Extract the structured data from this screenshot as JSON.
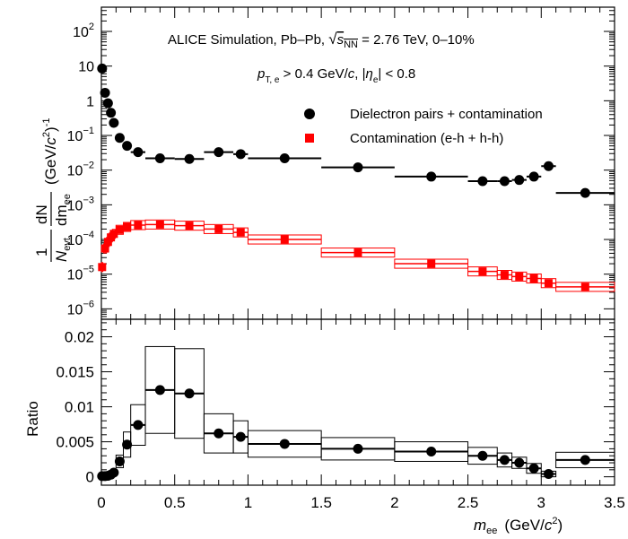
{
  "chart_data": [
    {
      "type": "scatter",
      "panel": "top",
      "annotation_line1": {
        "pre": "ALICE Simulation, Pb–Pb, ",
        "sqrt": "√",
        "s": "s",
        "nn": "NN",
        "post": " = 2.76 TeV, 0–10%"
      },
      "annotation_line2": {
        "p": "p",
        "p_sub": "T, e",
        "mid": " > 0.4 GeV/",
        "c": "c",
        "comma": ", |",
        "eta": "η",
        "eta_sub": "e",
        "end": "| < 0.8"
      },
      "ylabel": {
        "one": "1",
        "n": "N",
        "n_sub": "evt",
        "dN": "dN",
        "dm": "dm",
        "dm_sub": "ee",
        "unit_open": "(GeV/",
        "unit_c": "c",
        "unit_sq": "2",
        "unit_close": ")",
        "unit_exp": "-1"
      },
      "yscale": "log",
      "ylim": [
        5e-07,
        500
      ],
      "xlim": [
        0,
        3.5
      ],
      "y_ticks": [
        {
          "v": 1e-06,
          "base": "10",
          "exp": "−6"
        },
        {
          "v": 1e-05,
          "base": "10",
          "exp": "−5"
        },
        {
          "v": 0.0001,
          "base": "10",
          "exp": "−4"
        },
        {
          "v": 0.001,
          "base": "10",
          "exp": "−3"
        },
        {
          "v": 0.01,
          "base": "10",
          "exp": "−2"
        },
        {
          "v": 0.1,
          "base": "10",
          "exp": "−1"
        },
        {
          "v": 1,
          "base": "1",
          "exp": ""
        },
        {
          "v": 10,
          "base": "10",
          "exp": ""
        },
        {
          "v": 100,
          "base": "10",
          "exp": "2"
        }
      ],
      "legend_position": "right",
      "series": [
        {
          "name": "Dielectron pairs + contamination",
          "color": "#000000",
          "marker": "circle",
          "points": [
            {
              "x": 0.005,
              "y": 8.5,
              "xerr": 0.005
            },
            {
              "x": 0.025,
              "y": 1.7,
              "xerr": 0.01
            },
            {
              "x": 0.045,
              "y": 0.85,
              "xerr": 0.01
            },
            {
              "x": 0.065,
              "y": 0.45,
              "xerr": 0.01
            },
            {
              "x": 0.085,
              "y": 0.23,
              "xerr": 0.01
            },
            {
              "x": 0.125,
              "y": 0.085,
              "xerr": 0.025
            },
            {
              "x": 0.175,
              "y": 0.05,
              "xerr": 0.025
            },
            {
              "x": 0.25,
              "y": 0.033,
              "xerr": 0.05
            },
            {
              "x": 0.4,
              "y": 0.022,
              "xerr": 0.1
            },
            {
              "x": 0.6,
              "y": 0.021,
              "xerr": 0.1
            },
            {
              "x": 0.8,
              "y": 0.033,
              "xerr": 0.1
            },
            {
              "x": 0.95,
              "y": 0.029,
              "xerr": 0.05
            },
            {
              "x": 1.25,
              "y": 0.022,
              "xerr": 0.25
            },
            {
              "x": 1.75,
              "y": 0.012,
              "xerr": 0.25
            },
            {
              "x": 2.25,
              "y": 0.0065,
              "xerr": 0.25
            },
            {
              "x": 2.6,
              "y": 0.0048,
              "xerr": 0.1
            },
            {
              "x": 2.75,
              "y": 0.0048,
              "xerr": 0.05
            },
            {
              "x": 2.85,
              "y": 0.0052,
              "xerr": 0.05
            },
            {
              "x": 2.95,
              "y": 0.0065,
              "xerr": 0.05
            },
            {
              "x": 3.05,
              "y": 0.013,
              "xerr": 0.05
            },
            {
              "x": 3.3,
              "y": 0.0022,
              "xerr": 0.2
            }
          ]
        },
        {
          "name": "Contamination (e-h + h-h)",
          "color": "#ff0000",
          "marker": "square",
          "points": [
            {
              "x": 0.005,
              "y": 1.6e-05,
              "xerr": 0.005
            },
            {
              "x": 0.025,
              "y": 5.5e-05,
              "xerr": 0.01
            },
            {
              "x": 0.045,
              "y": 8.5e-05,
              "xerr": 0.01
            },
            {
              "x": 0.065,
              "y": 0.000115,
              "xerr": 0.01
            },
            {
              "x": 0.085,
              "y": 0.000145,
              "xerr": 0.01
            },
            {
              "x": 0.125,
              "y": 0.00019,
              "xerr": 0.025
            },
            {
              "x": 0.175,
              "y": 0.00023,
              "xerr": 0.025
            },
            {
              "x": 0.25,
              "y": 0.00026,
              "xerr": 0.05
            },
            {
              "x": 0.4,
              "y": 0.00027,
              "xerr": 0.1
            },
            {
              "x": 0.6,
              "y": 0.00025,
              "xerr": 0.1
            },
            {
              "x": 0.8,
              "y": 0.0002,
              "xerr": 0.1
            },
            {
              "x": 0.95,
              "y": 0.00016,
              "xerr": 0.05
            },
            {
              "x": 1.25,
              "y": 0.0001,
              "xerr": 0.25
            },
            {
              "x": 1.75,
              "y": 4.2e-05,
              "xerr": 0.25
            },
            {
              "x": 2.25,
              "y": 2e-05,
              "xerr": 0.25
            },
            {
              "x": 2.6,
              "y": 1.2e-05,
              "xerr": 0.1
            },
            {
              "x": 2.75,
              "y": 9.5e-06,
              "xerr": 0.05
            },
            {
              "x": 2.85,
              "y": 8.5e-06,
              "xerr": 0.05
            },
            {
              "x": 2.95,
              "y": 7.5e-06,
              "xerr": 0.05
            },
            {
              "x": 3.05,
              "y": 5.5e-06,
              "xerr": 0.05
            },
            {
              "x": 3.3,
              "y": 4.3e-06,
              "xerr": 0.2
            }
          ]
        }
      ]
    },
    {
      "type": "scatter",
      "panel": "bottom",
      "ylabel": "Ratio",
      "xlabel": {
        "m": "m",
        "m_sub": "ee",
        "unit_open": "(GeV/",
        "unit_c": "c",
        "unit_sq": "2",
        "unit_close": ")"
      },
      "xlim": [
        0,
        3.5
      ],
      "ylim": [
        -0.0012,
        0.0225
      ],
      "x_ticks": [
        "0",
        "0.5",
        "1",
        "1.5",
        "2",
        "2.5",
        "3",
        "3.5"
      ],
      "y_ticks": [
        "0",
        "0.005",
        "0.01",
        "0.015",
        "0.02"
      ],
      "series": [
        {
          "name": "",
          "color": "#000000",
          "marker": "circle",
          "points": [
            {
              "x": 0.005,
              "y": 0.0001,
              "xerr": 0.005,
              "syst": 0.0001
            },
            {
              "x": 0.025,
              "y": 0.0001,
              "xerr": 0.01,
              "syst": 0.0001
            },
            {
              "x": 0.045,
              "y": 0.00015,
              "xerr": 0.01,
              "syst": 0.0001
            },
            {
              "x": 0.065,
              "y": 0.0003,
              "xerr": 0.01,
              "syst": 0.0002
            },
            {
              "x": 0.085,
              "y": 0.0006,
              "xerr": 0.01,
              "syst": 0.0003
            },
            {
              "x": 0.125,
              "y": 0.0022,
              "xerr": 0.025,
              "syst": 0.0009
            },
            {
              "x": 0.175,
              "y": 0.0046,
              "xerr": 0.025,
              "syst": 0.0018
            },
            {
              "x": 0.25,
              "y": 0.0074,
              "xerr": 0.05,
              "syst": 0.0029
            },
            {
              "x": 0.4,
              "y": 0.0124,
              "xerr": 0.1,
              "syst": 0.0062
            },
            {
              "x": 0.6,
              "y": 0.0119,
              "xerr": 0.1,
              "syst": 0.0064
            },
            {
              "x": 0.8,
              "y": 0.0062,
              "xerr": 0.1,
              "syst": 0.0028
            },
            {
              "x": 0.95,
              "y": 0.0057,
              "xerr": 0.05,
              "syst": 0.0023
            },
            {
              "x": 1.25,
              "y": 0.0047,
              "xerr": 0.25,
              "syst": 0.0019
            },
            {
              "x": 1.75,
              "y": 0.004,
              "xerr": 0.25,
              "syst": 0.0016
            },
            {
              "x": 2.25,
              "y": 0.0036,
              "xerr": 0.25,
              "syst": 0.0014
            },
            {
              "x": 2.6,
              "y": 0.003,
              "xerr": 0.1,
              "syst": 0.0012
            },
            {
              "x": 2.75,
              "y": 0.0024,
              "xerr": 0.05,
              "syst": 0.001
            },
            {
              "x": 2.85,
              "y": 0.002,
              "xerr": 0.05,
              "syst": 0.0008
            },
            {
              "x": 2.95,
              "y": 0.0012,
              "xerr": 0.05,
              "syst": 0.0007
            },
            {
              "x": 3.05,
              "y": 0.0004,
              "xerr": 0.05,
              "syst": 0.0004
            },
            {
              "x": 3.3,
              "y": 0.0024,
              "xerr": 0.2,
              "syst": 0.0011
            }
          ]
        }
      ]
    }
  ]
}
